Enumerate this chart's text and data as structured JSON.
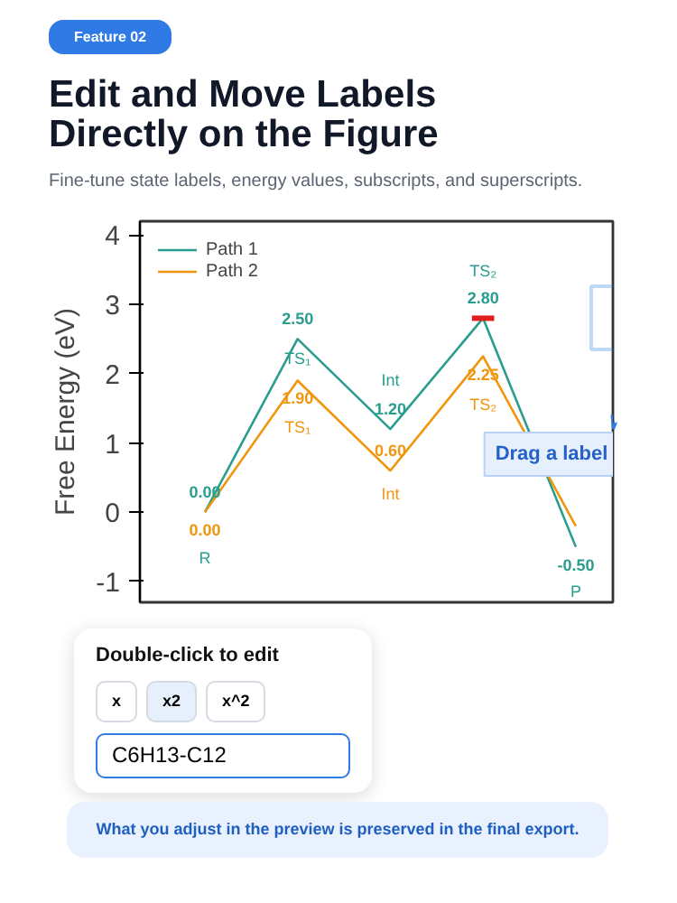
{
  "chart_data": {
    "type": "line",
    "title": "Edit and Move Labels Directly on the Figure",
    "subtitle": "Fine-tune state labels, energy values, subscripts, and superscripts.",
    "ylabel": "Free Energy (eV)",
    "categories": [
      null,
      null,
      null,
      null,
      null
    ],
    "ylim": [
      -1.3,
      4.2
    ],
    "yticks": [
      -1,
      0,
      1,
      2,
      3,
      4
    ],
    "tick_labels": "y",
    "grid": false,
    "legend": "top left",
    "marker": "none",
    "line_style": "solid",
    "series": [
      {
        "name": "Path 1",
        "color": "#2a9d8f",
        "colors": [
          "#2a9d8f",
          "#2a9d8f",
          "#2a9d8f",
          "#e01e1e",
          "#2a9d8f"
        ],
        "values": [
          0,
          2.5,
          1.2,
          2.8,
          -0.5
        ],
        "value_labels": [
          "0.00",
          "2.50",
          "1.20",
          "2.80",
          "-0.50"
        ]
      },
      {
        "name": "Path 2",
        "color": "#f0960f",
        "values": [
          0,
          1.9,
          0.6,
          2.25,
          -0.2
        ],
        "value_labels": [
          "0.00",
          "1.90",
          "0.60",
          "2.25",
          null
        ]
      }
    ],
    "annotations": [
      "R",
      "TS₁",
      "TS₁",
      "Int",
      "Int",
      "TS₂",
      "TS₂",
      "P",
      "Feature 02",
      "Drag a label",
      "Double-click to edit",
      "x",
      "x2",
      "x^2",
      "C6H13-C12",
      "What you adjust in the preview is preserved in the final export."
    ]
  }
}
